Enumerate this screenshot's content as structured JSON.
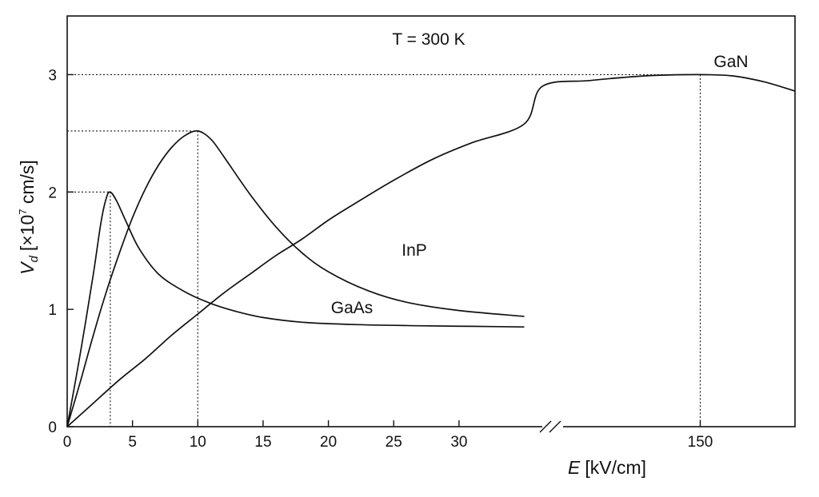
{
  "chart_data": {
    "type": "line",
    "title": "",
    "annotation": "T = 300 K",
    "xlabel": {
      "symbol": "E",
      "unit": "[kV/cm]"
    },
    "ylabel": {
      "symbol": "V",
      "subscript": "d",
      "unit_prefix": "[×10",
      "unit_exp": "7",
      "unit_suffix": " cm/s]"
    },
    "y_range": [
      0,
      3.5
    ],
    "x_range": [
      0,
      35
    ],
    "x_break": {
      "after": 35,
      "resume": 140,
      "right_edge": 156
    },
    "x_ticks": [
      {
        "value": 0,
        "label": "0"
      },
      {
        "value": 5,
        "label": "5"
      },
      {
        "value": 10,
        "label": "10"
      },
      {
        "value": 15,
        "label": "15"
      },
      {
        "value": 20,
        "label": "20"
      },
      {
        "value": 25,
        "label": "25"
      },
      {
        "value": 30,
        "label": "30"
      },
      {
        "value": 150,
        "label": "150"
      }
    ],
    "y_ticks": [
      {
        "value": 0,
        "label": "0"
      },
      {
        "value": 1,
        "label": "1"
      },
      {
        "value": 2,
        "label": "2"
      },
      {
        "value": 3,
        "label": "3"
      }
    ],
    "series": [
      {
        "name": "GaAs",
        "peak": {
          "x": 3.3,
          "y": 2.0
        },
        "points": [
          [
            0,
            0
          ],
          [
            1,
            0.62
          ],
          [
            2,
            1.3
          ],
          [
            2.6,
            1.75
          ],
          [
            3.0,
            1.95
          ],
          [
            3.3,
            2.0
          ],
          [
            3.8,
            1.92
          ],
          [
            4.5,
            1.75
          ],
          [
            5.5,
            1.52
          ],
          [
            7,
            1.3
          ],
          [
            9,
            1.15
          ],
          [
            11,
            1.05
          ],
          [
            13,
            0.98
          ],
          [
            15,
            0.93
          ],
          [
            18,
            0.89
          ],
          [
            22,
            0.87
          ],
          [
            27,
            0.86
          ],
          [
            31,
            0.855
          ],
          [
            35,
            0.85
          ]
        ]
      },
      {
        "name": "InP",
        "peak": {
          "x": 10,
          "y": 2.52
        },
        "points": [
          [
            0,
            0
          ],
          [
            1,
            0.38
          ],
          [
            2,
            0.78
          ],
          [
            3,
            1.15
          ],
          [
            4,
            1.48
          ],
          [
            5,
            1.78
          ],
          [
            6,
            2.03
          ],
          [
            7,
            2.23
          ],
          [
            8,
            2.38
          ],
          [
            9,
            2.48
          ],
          [
            10,
            2.52
          ],
          [
            11,
            2.45
          ],
          [
            12,
            2.3
          ],
          [
            14,
            1.98
          ],
          [
            16,
            1.7
          ],
          [
            18,
            1.48
          ],
          [
            20,
            1.32
          ],
          [
            23,
            1.16
          ],
          [
            26,
            1.06
          ],
          [
            30,
            0.99
          ],
          [
            35,
            0.94
          ]
        ]
      },
      {
        "name": "GaN",
        "peak": {
          "x": 150,
          "y": 3.0
        },
        "points": [
          [
            0,
            0
          ],
          [
            2,
            0.2
          ],
          [
            4,
            0.4
          ],
          [
            6,
            0.58
          ],
          [
            8,
            0.78
          ],
          [
            10,
            0.96
          ],
          [
            12,
            1.14
          ],
          [
            14,
            1.3
          ],
          [
            16,
            1.46
          ],
          [
            18,
            1.6
          ],
          [
            20,
            1.76
          ],
          [
            22,
            1.9
          ],
          [
            25,
            2.1
          ],
          [
            28,
            2.28
          ],
          [
            31,
            2.42
          ],
          [
            35,
            2.58
          ],
          [
            140,
            2.9
          ],
          [
            143,
            2.95
          ],
          [
            146,
            2.985
          ],
          [
            148,
            2.997
          ],
          [
            150,
            3.0
          ],
          [
            152,
            2.99
          ],
          [
            154,
            2.94
          ],
          [
            156,
            2.86
          ]
        ]
      }
    ]
  }
}
